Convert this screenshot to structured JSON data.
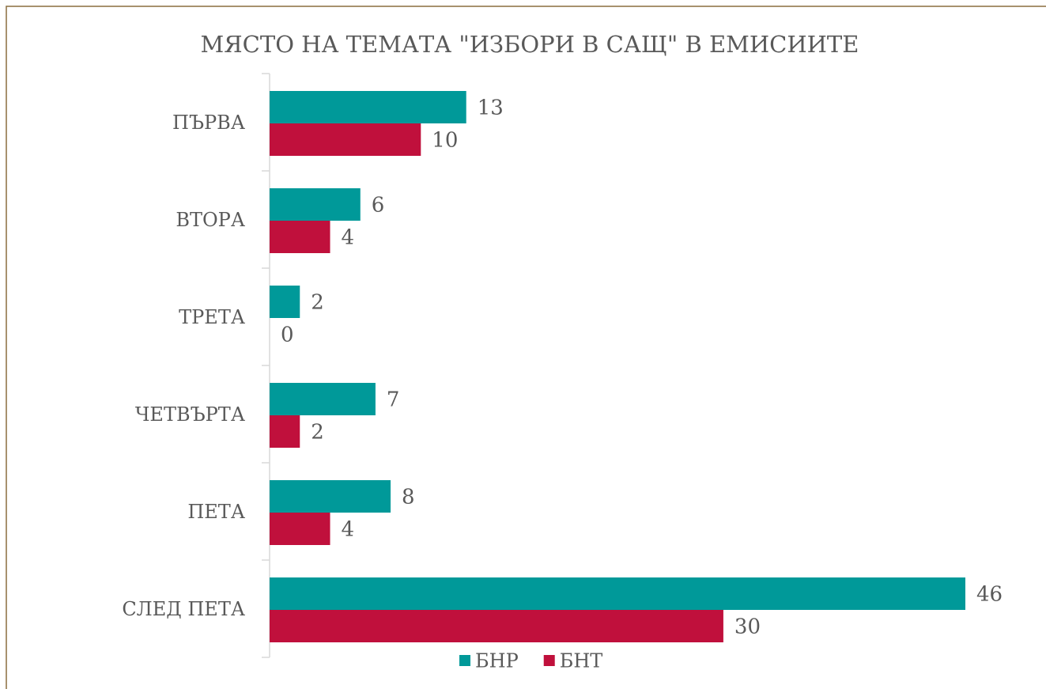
{
  "chart_data": {
    "type": "hbar",
    "title": "МЯСТО НА ТЕМАТА \"ИЗБОРИ В САЩ\" В ЕМИСИИТЕ",
    "categories": [
      "ПЪРВА",
      "ВТОРА",
      "ТРЕТА",
      "ЧЕТВЪРТА",
      "ПЕТА",
      "СЛЕД ПЕТА"
    ],
    "series": [
      {
        "name": "БНР",
        "color": "#009999",
        "values": [
          13,
          6,
          2,
          7,
          8,
          46
        ]
      },
      {
        "name": "БНТ",
        "color": "#c0103c",
        "values": [
          10,
          4,
          0,
          2,
          4,
          30
        ]
      }
    ],
    "legend": "bottom"
  }
}
